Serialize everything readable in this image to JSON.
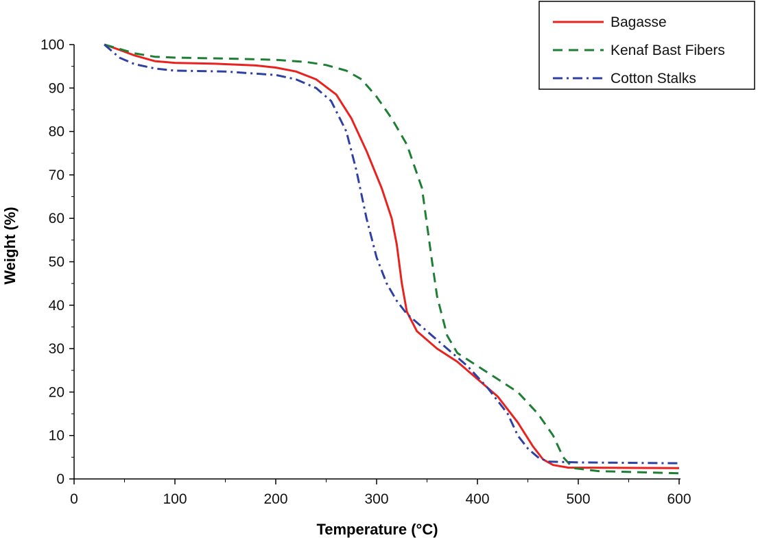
{
  "chart_data": {
    "type": "line",
    "title": "",
    "xlabel": "Temperature (°C)",
    "ylabel": "Weight (%)",
    "xlim": [
      0,
      600
    ],
    "ylim": [
      0,
      100
    ],
    "xticks": [
      0,
      100,
      200,
      300,
      400,
      500,
      600
    ],
    "yticks": [
      0,
      10,
      20,
      30,
      40,
      50,
      60,
      70,
      80,
      90,
      100
    ],
    "grid": false,
    "legend_position": "top-right",
    "series": [
      {
        "name": "Bagasse",
        "color": "#e8231f",
        "style": "solid",
        "points": [
          [
            30,
            100
          ],
          [
            45,
            98.8
          ],
          [
            60,
            97.5
          ],
          [
            80,
            96.2
          ],
          [
            100,
            95.8
          ],
          [
            140,
            95.6
          ],
          [
            180,
            95.2
          ],
          [
            200,
            94.7
          ],
          [
            220,
            93.8
          ],
          [
            240,
            92
          ],
          [
            260,
            88.5
          ],
          [
            275,
            83
          ],
          [
            290,
            75.5
          ],
          [
            305,
            67
          ],
          [
            315,
            60
          ],
          [
            320,
            54
          ],
          [
            325,
            45
          ],
          [
            330,
            38.5
          ],
          [
            340,
            34
          ],
          [
            360,
            30
          ],
          [
            380,
            27
          ],
          [
            400,
            23
          ],
          [
            420,
            19
          ],
          [
            440,
            13
          ],
          [
            455,
            7.5
          ],
          [
            465,
            4.5
          ],
          [
            475,
            3.2
          ],
          [
            490,
            2.6
          ],
          [
            600,
            2.5
          ]
        ]
      },
      {
        "name": "Kenaf Bast Fibers",
        "color": "#1e7e34",
        "style": "dash",
        "points": [
          [
            30,
            100
          ],
          [
            45,
            99
          ],
          [
            60,
            98
          ],
          [
            80,
            97.2
          ],
          [
            100,
            97
          ],
          [
            150,
            96.8
          ],
          [
            200,
            96.5
          ],
          [
            230,
            96
          ],
          [
            250,
            95.3
          ],
          [
            270,
            94
          ],
          [
            285,
            92
          ],
          [
            300,
            88
          ],
          [
            315,
            83
          ],
          [
            330,
            77
          ],
          [
            345,
            67
          ],
          [
            355,
            50
          ],
          [
            360,
            42
          ],
          [
            370,
            33
          ],
          [
            380,
            29
          ],
          [
            400,
            26
          ],
          [
            420,
            23
          ],
          [
            440,
            20
          ],
          [
            460,
            15
          ],
          [
            475,
            10
          ],
          [
            485,
            5
          ],
          [
            495,
            2.5
          ],
          [
            520,
            1.8
          ],
          [
            600,
            1.3
          ]
        ]
      },
      {
        "name": "Cotton Stalks",
        "color": "#2e40a3",
        "style": "dashdot",
        "points": [
          [
            30,
            100
          ],
          [
            45,
            97
          ],
          [
            60,
            95.5
          ],
          [
            80,
            94.5
          ],
          [
            100,
            94
          ],
          [
            150,
            93.8
          ],
          [
            200,
            93
          ],
          [
            220,
            92
          ],
          [
            240,
            90
          ],
          [
            255,
            87
          ],
          [
            270,
            80
          ],
          [
            280,
            71
          ],
          [
            290,
            60
          ],
          [
            300,
            51
          ],
          [
            310,
            45
          ],
          [
            320,
            41
          ],
          [
            330,
            38
          ],
          [
            350,
            34
          ],
          [
            370,
            30
          ],
          [
            390,
            26
          ],
          [
            410,
            21
          ],
          [
            430,
            15
          ],
          [
            440,
            10
          ],
          [
            450,
            7
          ],
          [
            460,
            5
          ],
          [
            470,
            4
          ],
          [
            500,
            3.8
          ],
          [
            600,
            3.6
          ]
        ]
      }
    ]
  }
}
